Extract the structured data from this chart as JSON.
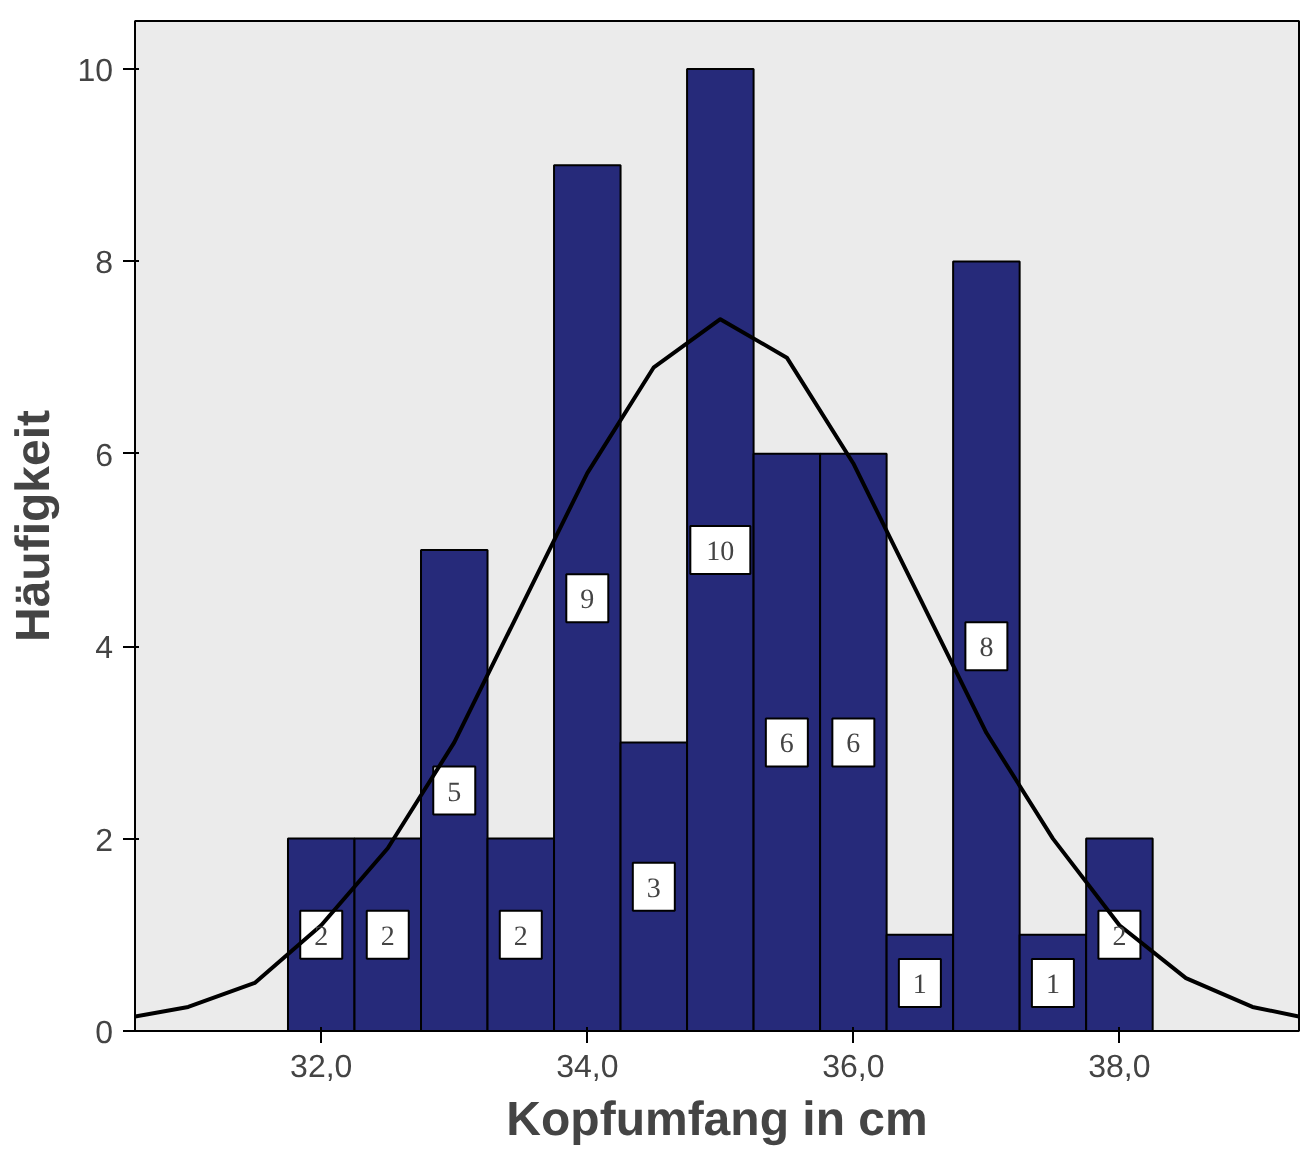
{
  "chart_data": {
    "type": "histogram",
    "xlabel": "Kopfumfang in cm",
    "ylabel": "Häufigkeit",
    "bins": [
      31.75,
      32.25,
      32.75,
      33.25,
      33.75,
      34.25,
      34.75,
      35.25,
      35.75,
      36.25,
      36.75,
      37.25,
      37.75,
      38.25
    ],
    "values": [
      2,
      2,
      5,
      2,
      9,
      3,
      10,
      6,
      6,
      1,
      8,
      1,
      2
    ],
    "color": "#262a7a",
    "value_labels": [
      "2",
      "2",
      "5",
      "2",
      "9",
      "3",
      "10",
      "6",
      "6",
      "1",
      "8",
      "1",
      "2"
    ],
    "series": [
      {
        "type": "line",
        "color": "#000000",
        "x": [
          30.6,
          31.0,
          31.5,
          32.0,
          32.5,
          33.0,
          33.5,
          34.0,
          34.5,
          35.0,
          35.5,
          36.0,
          36.5,
          37.0,
          37.5,
          38.0,
          38.5,
          39.0,
          39.35
        ],
        "values": [
          0.15,
          0.25,
          0.5,
          1.1,
          1.9,
          3.0,
          4.4,
          5.8,
          6.9,
          7.4,
          7.0,
          5.9,
          4.5,
          3.1,
          2.0,
          1.1,
          0.55,
          0.25,
          0.15
        ]
      }
    ],
    "xlim": [
      30.6,
      39.35
    ],
    "ylim": [
      0,
      10.5
    ],
    "xticks": [
      {
        "value": 32,
        "label": "32,0"
      },
      {
        "value": 34,
        "label": "34,0"
      },
      {
        "value": 36,
        "label": "36,0"
      },
      {
        "value": 38,
        "label": "38,0"
      }
    ],
    "yticks": [
      0,
      2,
      4,
      6,
      8,
      10
    ],
    "grid": false
  }
}
